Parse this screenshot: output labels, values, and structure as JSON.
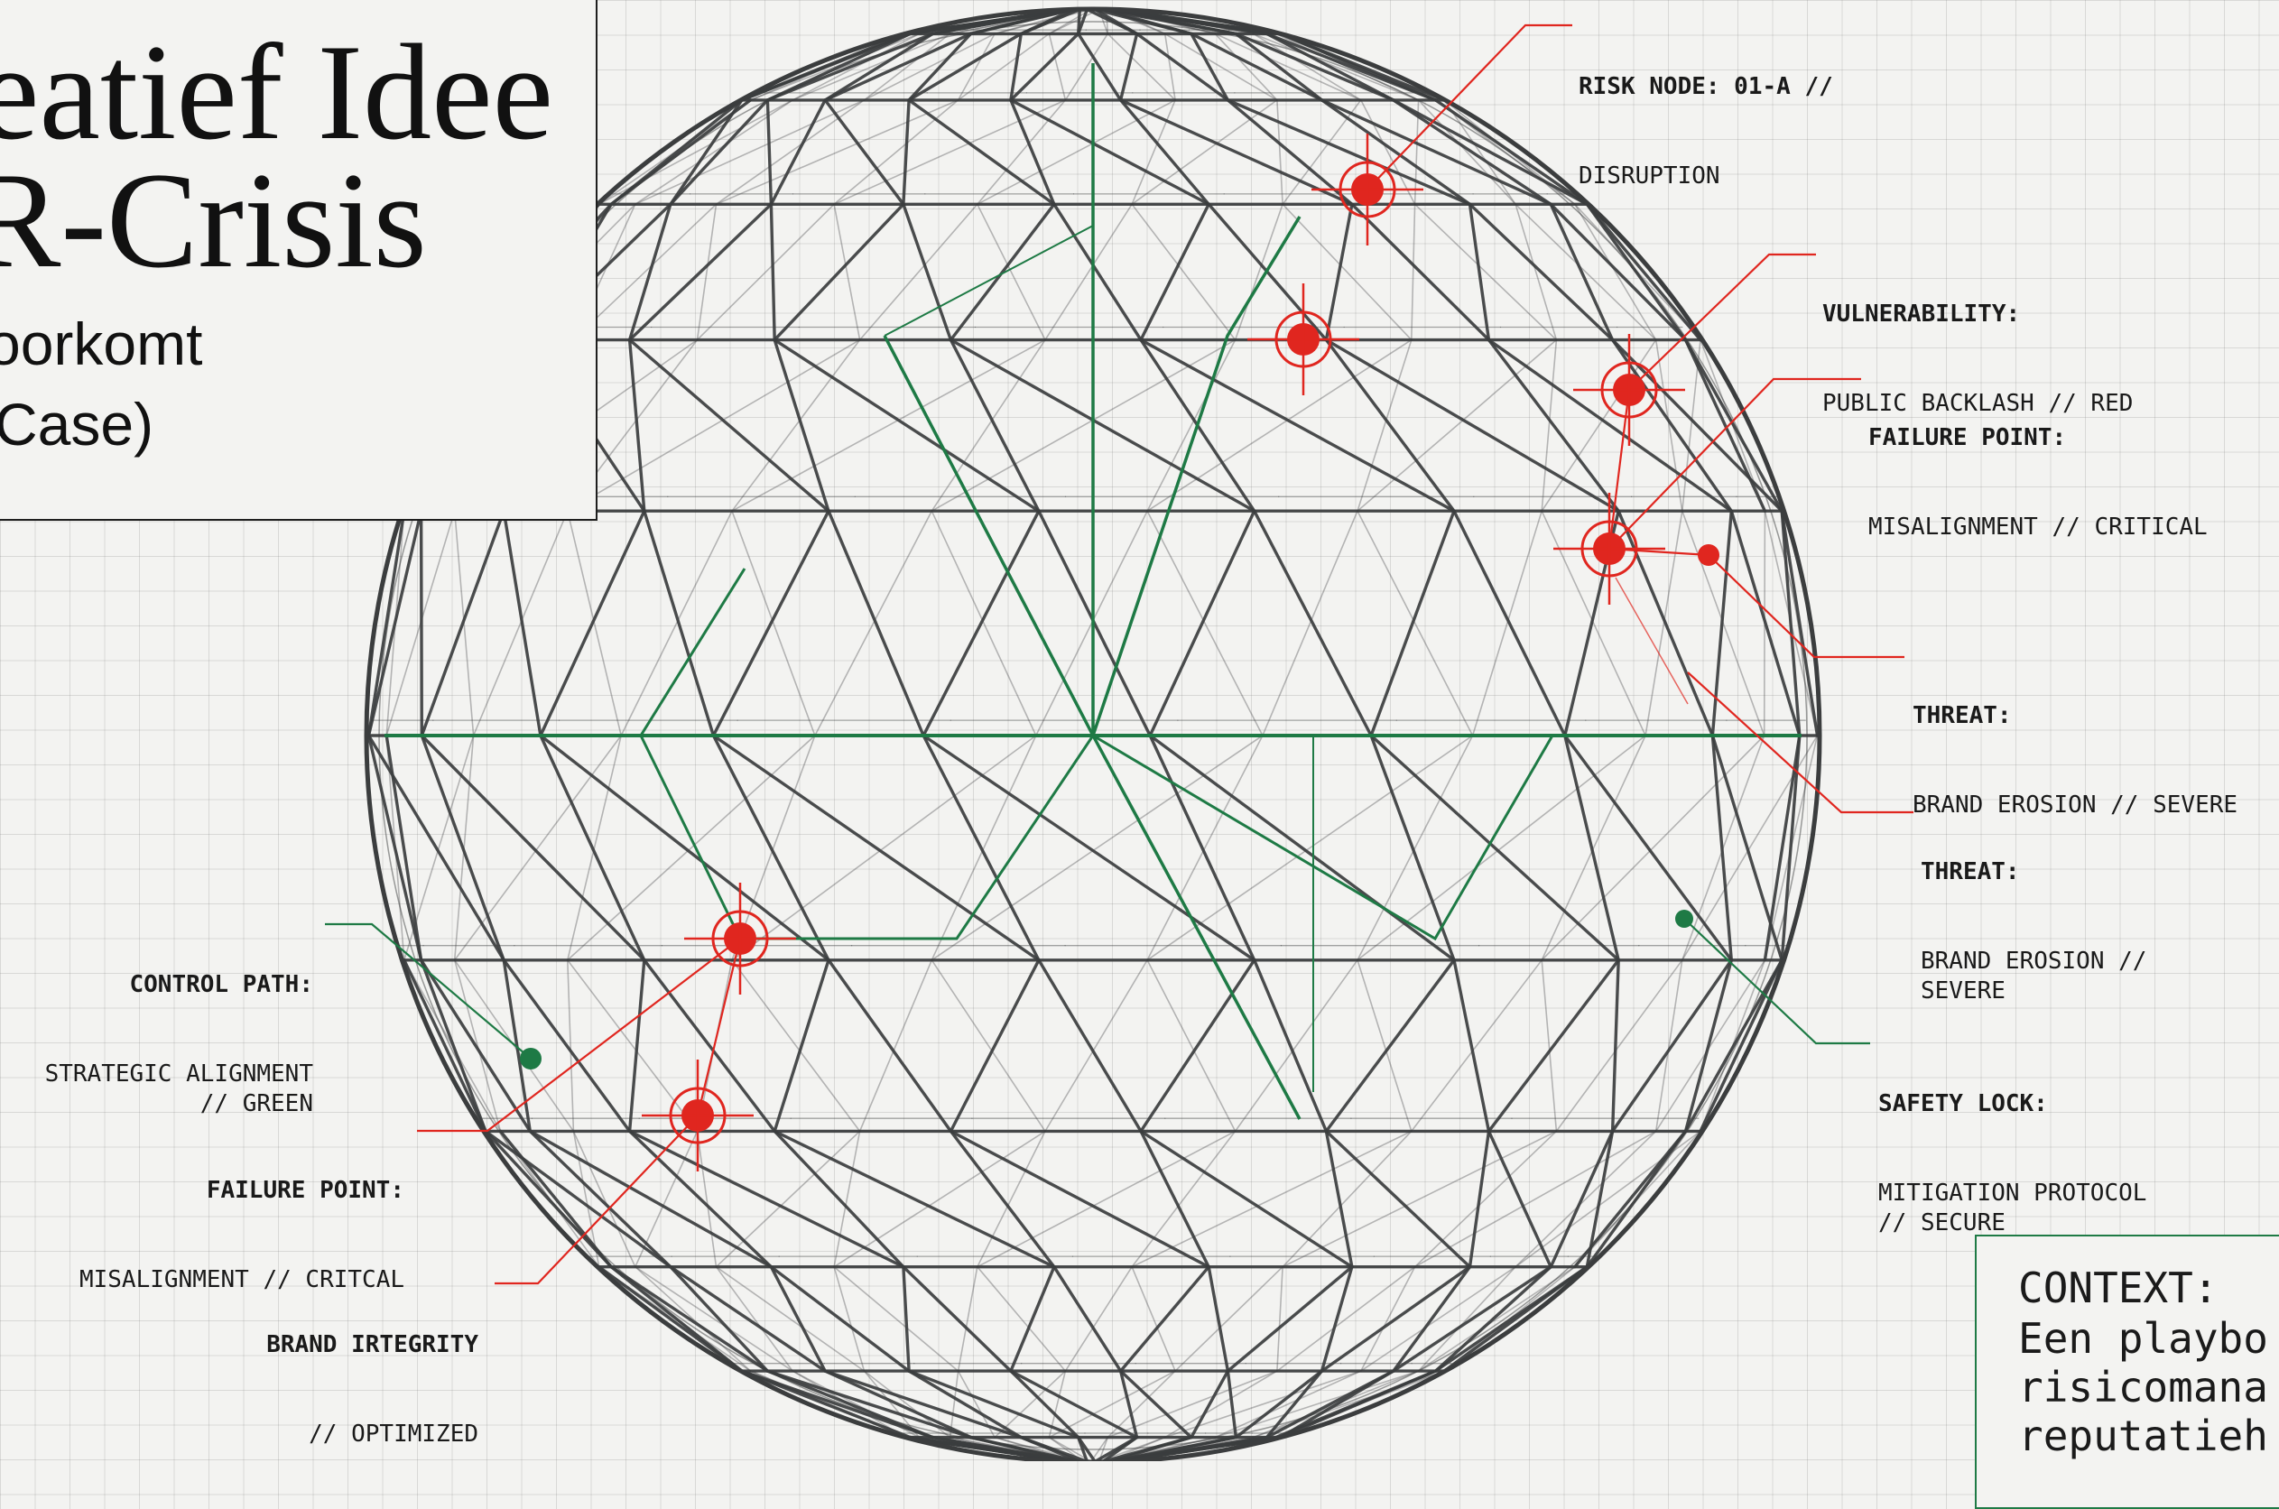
{
  "title": {
    "line1": "eatief Idee",
    "line2": "R-Crisis",
    "sub1": "oorkomt",
    "sub2": "Case)"
  },
  "labels": [
    {
      "id": "risk-node",
      "heading": "RISK NODE: 01-A //",
      "text": "DISRUPTION"
    },
    {
      "id": "vulnerability",
      "heading": "VULNERABILITY:",
      "text": "PUBLIC BACKLASH // RED"
    },
    {
      "id": "failure-point-right",
      "heading": "FAILURE POINT:",
      "text": "MISALIGNMENT // CRITICAL"
    },
    {
      "id": "threat-1",
      "heading": "THREAT:",
      "text": "BRAND EROSION // SEVERE"
    },
    {
      "id": "threat-2",
      "heading": "THREAT:",
      "text": "BRAND EROSION //\nSEVERE"
    },
    {
      "id": "safety-lock",
      "heading": "SAFETY LOCK:",
      "text": "MITIGATION PROTOCOL\n// SECURE"
    },
    {
      "id": "control-path",
      "heading": "CONTROL PATH:",
      "text": "STRATEGIC ALIGNMENT\n// GREEN"
    },
    {
      "id": "failure-point-left",
      "heading": "FAILURE POINT:",
      "text": "MISALIGNMENT // CRITCAL"
    },
    {
      "id": "brand-integrity",
      "heading": "BRAND IRTEGRITY",
      "text": "// OPTIMIZED"
    }
  ],
  "context": {
    "heading": "CONTEXT:",
    "body": "Een playbo\nrisicomana\nreputatieh"
  },
  "colors": {
    "frame": "#3b3d3e",
    "green": "#1e7a45",
    "red": "#e0261f",
    "ink": "#1a1a1a"
  },
  "icons": {
    "risk_marker": "crosshair-target-icon",
    "safe_marker": "green-dot-icon"
  }
}
